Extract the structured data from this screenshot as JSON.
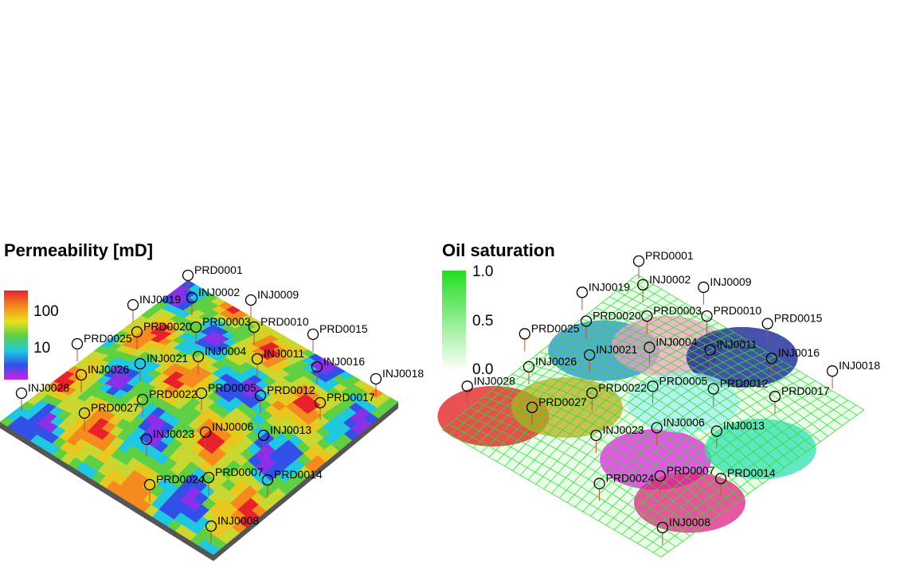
{
  "panels": [
    {
      "title": "Permeability [mD]",
      "colorbar_ticks": [
        "100",
        "10"
      ],
      "wells": [
        "PRD0001",
        "INJ0002",
        "INJ0009",
        "INJ0019",
        "PRD0020",
        "PRD0003",
        "PRD0010",
        "PRD0015",
        "PRD0025",
        "INJ0021",
        "INJ0004",
        "INJ0011",
        "INJ0016",
        "INJ0018",
        "INJ0026",
        "INJ0028",
        "PRD0022",
        "PRD0005",
        "PRD0012",
        "PRD0017",
        "PRD0027",
        "INJ0006",
        "INJ0013",
        "INJ0023",
        "PRD0024",
        "PRD0007",
        "PRD0014",
        "INJ0008"
      ]
    },
    {
      "title": "Oil saturation",
      "colorbar_ticks": [
        "1.0",
        "0.5",
        "0.0"
      ],
      "wells": [
        "PRD0001",
        "INJ0002",
        "INJ0009",
        "INJ0019",
        "PRD0020",
        "PRD0003",
        "PRD0010",
        "PRD0015",
        "PRD0025",
        "INJ0021",
        "INJ0004",
        "INJ0011",
        "INJ0016",
        "INJ0018",
        "INJ0026",
        "INJ0028",
        "PRD0022",
        "PRD0005",
        "PRD0012",
        "PRD0017",
        "PRD0027",
        "INJ0006",
        "INJ0013",
        "INJ0023",
        "PRD0024",
        "PRD0007",
        "PRD0014",
        "INJ0008"
      ]
    }
  ]
}
